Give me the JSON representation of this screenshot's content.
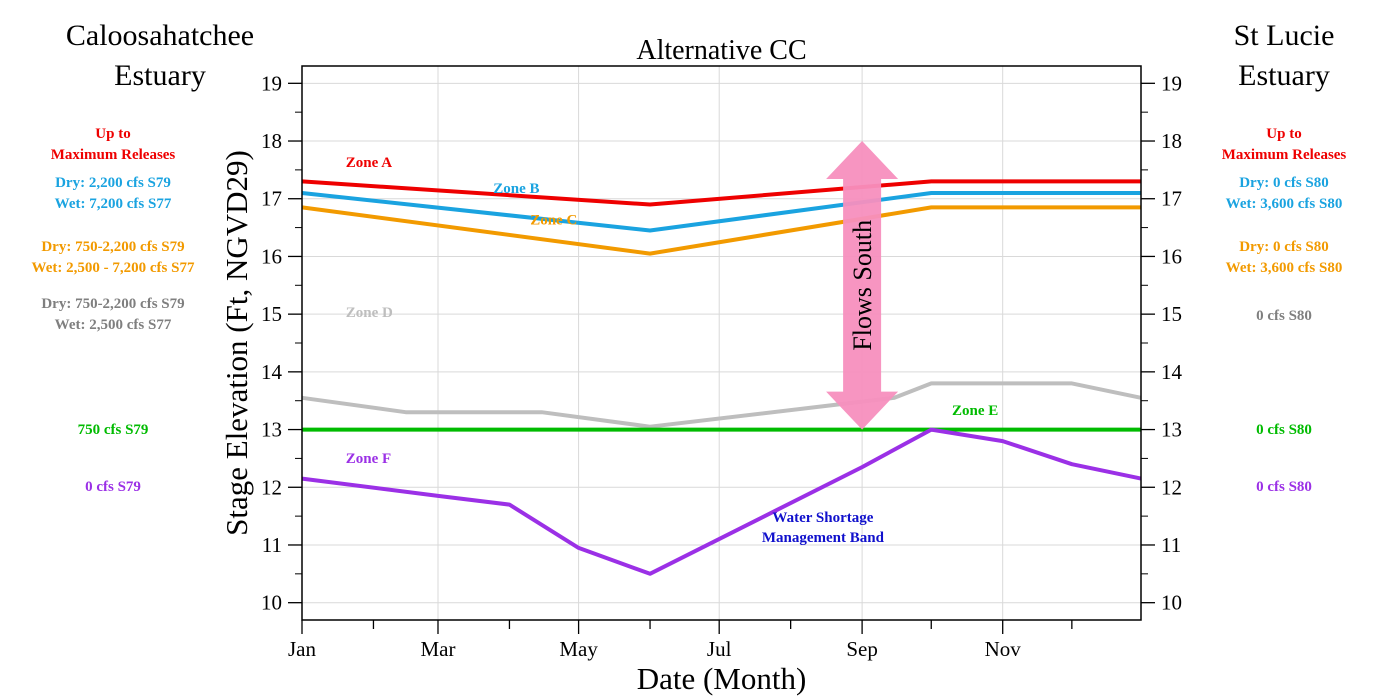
{
  "left_panel": {
    "title": [
      "Caloosahatchee",
      "Estuary"
    ],
    "notes": [
      {
        "lines": [
          "Up to",
          "Maximum Releases"
        ],
        "color": "#ee0000"
      },
      {
        "lines": [
          "Dry: 2,200 cfs S79",
          "Wet: 7,200 cfs S77"
        ],
        "color": "#1aa3e0"
      },
      {
        "lines": [
          "Dry: 750-2,200 cfs S79",
          "Wet: 2,500 - 7,200 cfs S77"
        ],
        "color": "#f29a00"
      },
      {
        "lines": [
          "Dry: 750-2,200 cfs S79",
          "Wet: 2,500 cfs S77"
        ],
        "color": "#7f7f7f"
      },
      {
        "lines": [
          "750 cfs S79"
        ],
        "color": "#00bb00"
      },
      {
        "lines": [
          "0 cfs S79"
        ],
        "color": "#9b30e6"
      }
    ]
  },
  "right_panel": {
    "title": [
      "St Lucie",
      "Estuary"
    ],
    "notes": [
      {
        "lines": [
          "Up to",
          "Maximum Releases"
        ],
        "color": "#ee0000"
      },
      {
        "lines": [
          "Dry: 0 cfs S80",
          "Wet: 3,600 cfs S80"
        ],
        "color": "#1aa3e0"
      },
      {
        "lines": [
          "Dry: 0 cfs S80",
          "Wet: 3,600 cfs S80"
        ],
        "color": "#f29a00"
      },
      {
        "lines": [
          "0 cfs S80"
        ],
        "color": "#7f7f7f"
      },
      {
        "lines": [
          "0 cfs S80"
        ],
        "color": "#00bb00"
      },
      {
        "lines": [
          "0 cfs S80"
        ],
        "color": "#9b30e6"
      }
    ]
  },
  "chart_data": {
    "type": "line",
    "title": "Alternative CC",
    "xlabel": "Date (Month)",
    "ylabel": "Stage Elevation (Ft, NGVD29)",
    "xlim": [
      "Jan 1",
      "Dec 31"
    ],
    "ylim": [
      9.7,
      19.3
    ],
    "x_ticks": [
      "Jan",
      "Mar",
      "May",
      "Jul",
      "Sep",
      "Nov"
    ],
    "y_ticks": [
      10,
      11,
      12,
      13,
      14,
      15,
      16,
      17,
      18,
      19
    ],
    "grid": true,
    "series": [
      {
        "name": "Zone A",
        "color": "#ee0000",
        "x": [
          "Jan 1",
          "Jun 1",
          "Oct 1",
          "Dec 31"
        ],
        "y": [
          17.3,
          16.9,
          17.3,
          17.3
        ]
      },
      {
        "name": "Zone B",
        "color": "#1aa3e0",
        "x": [
          "Jan 1",
          "Jun 1",
          "Oct 1",
          "Dec 31"
        ],
        "y": [
          17.1,
          16.45,
          17.1,
          17.1
        ]
      },
      {
        "name": "Zone C",
        "color": "#f29a00",
        "x": [
          "Jan 1",
          "Jun 1",
          "Oct 1",
          "Dec 31"
        ],
        "y": [
          16.85,
          16.05,
          16.85,
          16.85
        ]
      },
      {
        "name": "Zone D",
        "color": "#bebebe",
        "x": [
          "Jan 1",
          "Feb 15",
          "Apr 15",
          "Jun 1",
          "Sep 15",
          "Oct 1",
          "Dec 1",
          "Dec 31"
        ],
        "y": [
          13.55,
          13.3,
          13.3,
          13.05,
          13.55,
          13.8,
          13.8,
          13.55
        ]
      },
      {
        "name": "Zone E",
        "color": "#00bb00",
        "x": [
          "Jan 1",
          "Dec 31"
        ],
        "y": [
          13.0,
          13.0
        ]
      },
      {
        "name": "Zone F",
        "color": "#9b30e6",
        "x": [
          "Jan 1",
          "Mar 1",
          "Apr 1",
          "May 1",
          "Jun 1",
          "Sep 1",
          "Oct 1",
          "Nov 1",
          "Dec 1",
          "Dec 31"
        ],
        "y": [
          12.15,
          11.85,
          11.7,
          10.95,
          10.5,
          12.35,
          13.0,
          12.8,
          12.4,
          12.15
        ]
      }
    ],
    "annotations": [
      {
        "text": "Zone A",
        "color": "#ee0000",
        "x": "Jan 20",
        "y": 17.55
      },
      {
        "text": "Zone B",
        "color": "#1aa3e0",
        "x": "Mar 25",
        "y": 17.1
      },
      {
        "text": "Zone C",
        "color": "#f29a00",
        "x": "Apr 10",
        "y": 16.55
      },
      {
        "text": "Zone D",
        "color": "#bebebe",
        "x": "Jan 20",
        "y": 14.95
      },
      {
        "text": "Zone E",
        "color": "#00bb00",
        "x": "Oct 10",
        "y": 13.25
      },
      {
        "text": "Zone F",
        "color": "#9b30e6",
        "x": "Jan 20",
        "y": 12.42
      },
      {
        "text": "Water Shortage",
        "color": "#1010cc",
        "x": "Aug 15",
        "y": 11.4
      },
      {
        "text": "Management Band",
        "color": "#1010cc",
        "x": "Aug 15",
        "y": 11.05
      }
    ],
    "arrow": {
      "label": "Flows South",
      "color": "#f78fbe",
      "x": "Sep 1",
      "y_range": [
        13.0,
        18.0
      ]
    }
  }
}
